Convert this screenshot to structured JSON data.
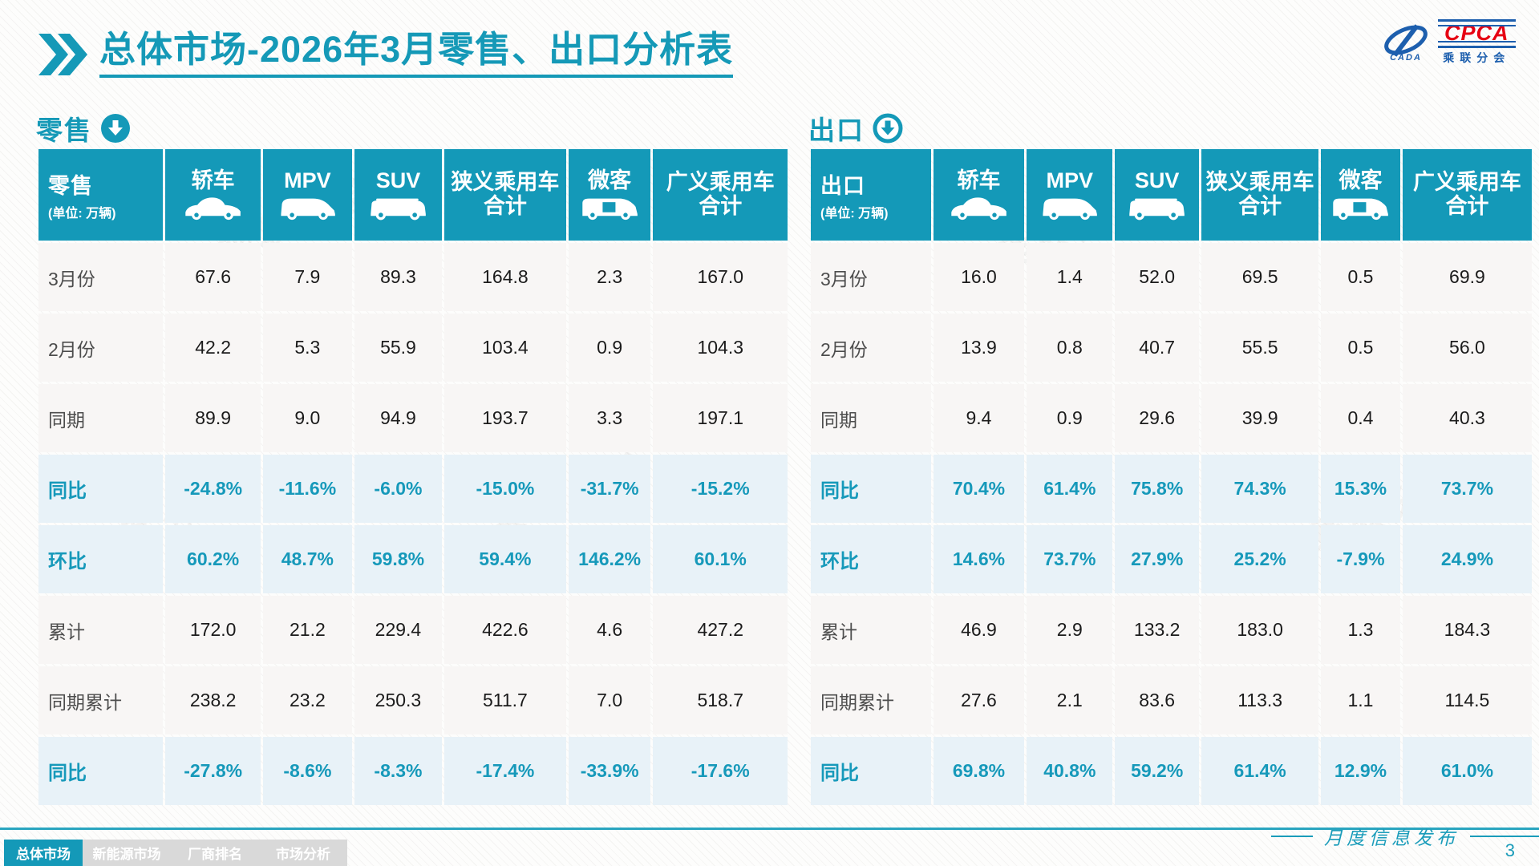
{
  "title": {
    "highlight": "总体市场",
    "rest": "-2026年3月零售、出口分析表"
  },
  "logo": {
    "cada": "CADA",
    "cpca": "CPCA",
    "name_cn": "乘联分会"
  },
  "watermark": {
    "text": "乘联分会"
  },
  "tables": [
    {
      "section": {
        "label": "零售",
        "icon": "down-arrow-circle-filled-icon"
      },
      "corner": {
        "title": "零售",
        "unit": "(单位: 万辆)"
      },
      "columns": [
        {
          "label": "轿车",
          "icon": "sedan-car-icon"
        },
        {
          "label": "MPV",
          "icon": "mpv-car-icon"
        },
        {
          "label": "SUV",
          "icon": "suv-car-icon"
        },
        {
          "label": "狭义乘用车\n合计",
          "icon": ""
        },
        {
          "label": "微客",
          "icon": "microvan-icon"
        },
        {
          "label": "广义乘用车\n合计",
          "icon": ""
        }
      ],
      "rows": [
        {
          "label": "3月份",
          "highlight": false,
          "values": [
            "67.6",
            "7.9",
            "89.3",
            "164.8",
            "2.3",
            "167.0"
          ]
        },
        {
          "label": "2月份",
          "highlight": false,
          "values": [
            "42.2",
            "5.3",
            "55.9",
            "103.4",
            "0.9",
            "104.3"
          ]
        },
        {
          "label": "同期",
          "highlight": false,
          "values": [
            "89.9",
            "9.0",
            "94.9",
            "193.7",
            "3.3",
            "197.1"
          ]
        },
        {
          "label": "同比",
          "highlight": true,
          "values": [
            "-24.8%",
            "-11.6%",
            "-6.0%",
            "-15.0%",
            "-31.7%",
            "-15.2%"
          ]
        },
        {
          "label": "环比",
          "highlight": true,
          "values": [
            "60.2%",
            "48.7%",
            "59.8%",
            "59.4%",
            "146.2%",
            "60.1%"
          ]
        },
        {
          "label": "累计",
          "highlight": false,
          "values": [
            "172.0",
            "21.2",
            "229.4",
            "422.6",
            "4.6",
            "427.2"
          ]
        },
        {
          "label": "同期累计",
          "highlight": false,
          "values": [
            "238.2",
            "23.2",
            "250.3",
            "511.7",
            "7.0",
            "518.7"
          ]
        },
        {
          "label": "同比",
          "highlight": true,
          "values": [
            "-27.8%",
            "-8.6%",
            "-8.3%",
            "-17.4%",
            "-33.9%",
            "-17.6%"
          ]
        }
      ]
    },
    {
      "section": {
        "label": "出口",
        "icon": "down-arrow-circle-outline-icon"
      },
      "corner": {
        "title": "出口",
        "unit": "(单位: 万辆)"
      },
      "columns": [
        {
          "label": "轿车",
          "icon": "sedan-car-icon"
        },
        {
          "label": "MPV",
          "icon": "mpv-car-icon"
        },
        {
          "label": "SUV",
          "icon": "suv-car-icon"
        },
        {
          "label": "狭义乘用车\n合计",
          "icon": ""
        },
        {
          "label": "微客",
          "icon": "microvan-icon"
        },
        {
          "label": "广义乘用车\n合计",
          "icon": ""
        }
      ],
      "rows": [
        {
          "label": "3月份",
          "highlight": false,
          "values": [
            "16.0",
            "1.4",
            "52.0",
            "69.5",
            "0.5",
            "69.9"
          ]
        },
        {
          "label": "2月份",
          "highlight": false,
          "values": [
            "13.9",
            "0.8",
            "40.7",
            "55.5",
            "0.5",
            "56.0"
          ]
        },
        {
          "label": "同期",
          "highlight": false,
          "values": [
            "9.4",
            "0.9",
            "29.6",
            "39.9",
            "0.4",
            "40.3"
          ]
        },
        {
          "label": "同比",
          "highlight": true,
          "values": [
            "70.4%",
            "61.4%",
            "75.8%",
            "74.3%",
            "15.3%",
            "73.7%"
          ]
        },
        {
          "label": "环比",
          "highlight": true,
          "values": [
            "14.6%",
            "73.7%",
            "27.9%",
            "25.2%",
            "-7.9%",
            "24.9%"
          ]
        },
        {
          "label": "累计",
          "highlight": false,
          "values": [
            "46.9",
            "2.9",
            "133.2",
            "183.0",
            "1.3",
            "184.3"
          ]
        },
        {
          "label": "同期累计",
          "highlight": false,
          "values": [
            "27.6",
            "2.1",
            "83.6",
            "113.3",
            "1.1",
            "114.5"
          ]
        },
        {
          "label": "同比",
          "highlight": true,
          "values": [
            "69.8%",
            "40.8%",
            "59.2%",
            "61.4%",
            "12.9%",
            "61.0%"
          ]
        }
      ]
    }
  ],
  "footer": {
    "tabs": [
      {
        "label": "总体市场",
        "active": true
      },
      {
        "label": "新能源市场",
        "active": false
      },
      {
        "label": "厂商排名",
        "active": false
      },
      {
        "label": "市场分析",
        "active": false
      }
    ],
    "publication": "月度信息发布",
    "page": "3"
  },
  "colors": {
    "accent": "#1599b7",
    "highlight_row_bg": "#e8f2f8",
    "logo_blue": "#1d5fae",
    "logo_red": "#e60012"
  }
}
